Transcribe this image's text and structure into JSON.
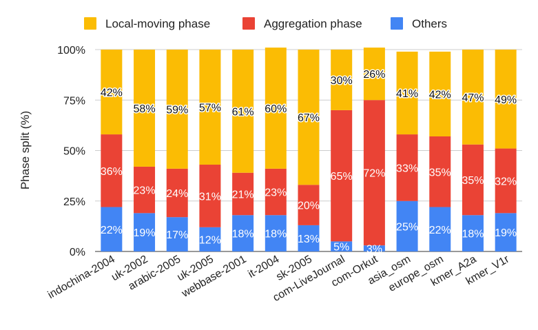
{
  "chart_data": {
    "type": "bar",
    "stacked": true,
    "ylabel": "Phase split (%)",
    "xlabel": "",
    "ylim": [
      0,
      100
    ],
    "yticks": [
      "0%",
      "25%",
      "50%",
      "75%",
      "100%"
    ],
    "legend_position": "top",
    "categories": [
      "indochina-2004",
      "uk-2002",
      "arabic-2005",
      "uk-2005",
      "webbase-2001",
      "it-2004",
      "sk-2005",
      "com-LiveJournal",
      "com-Orkut",
      "asia_osm",
      "europe_osm",
      "kmer_A2a",
      "kmer_V1r"
    ],
    "series": [
      {
        "name": "Others",
        "color": "#4285F4",
        "values": [
          22,
          19,
          17,
          12,
          18,
          18,
          13,
          5,
          3,
          25,
          22,
          18,
          19
        ],
        "labels": [
          "22%",
          "19%",
          "17%",
          "12%",
          "18%",
          "18%",
          "13%",
          "5%",
          "3%",
          "25%",
          "22%",
          "18%",
          "19%"
        ]
      },
      {
        "name": "Aggregation phase",
        "color": "#EA4335",
        "values": [
          36,
          23,
          24,
          31,
          21,
          23,
          20,
          65,
          72,
          33,
          35,
          35,
          32
        ],
        "labels": [
          "36%",
          "23%",
          "24%",
          "31%",
          "21%",
          "23%",
          "20%",
          "65%",
          "72%",
          "33%",
          "35%",
          "35%",
          "32%"
        ]
      },
      {
        "name": "Local-moving phase",
        "color": "#FBBC04",
        "values": [
          42,
          58,
          59,
          57,
          61,
          60,
          67,
          30,
          26,
          41,
          42,
          47,
          49
        ],
        "labels": [
          "42%",
          "58%",
          "59%",
          "57%",
          "61%",
          "60%",
          "67%",
          "30%",
          "26%",
          "41%",
          "42%",
          "47%",
          "49%"
        ]
      }
    ],
    "legend": [
      {
        "name": "Local-moving phase",
        "color": "#FBBC04"
      },
      {
        "name": "Aggregation phase",
        "color": "#EA4335"
      },
      {
        "name": "Others",
        "color": "#4285F4"
      }
    ]
  }
}
